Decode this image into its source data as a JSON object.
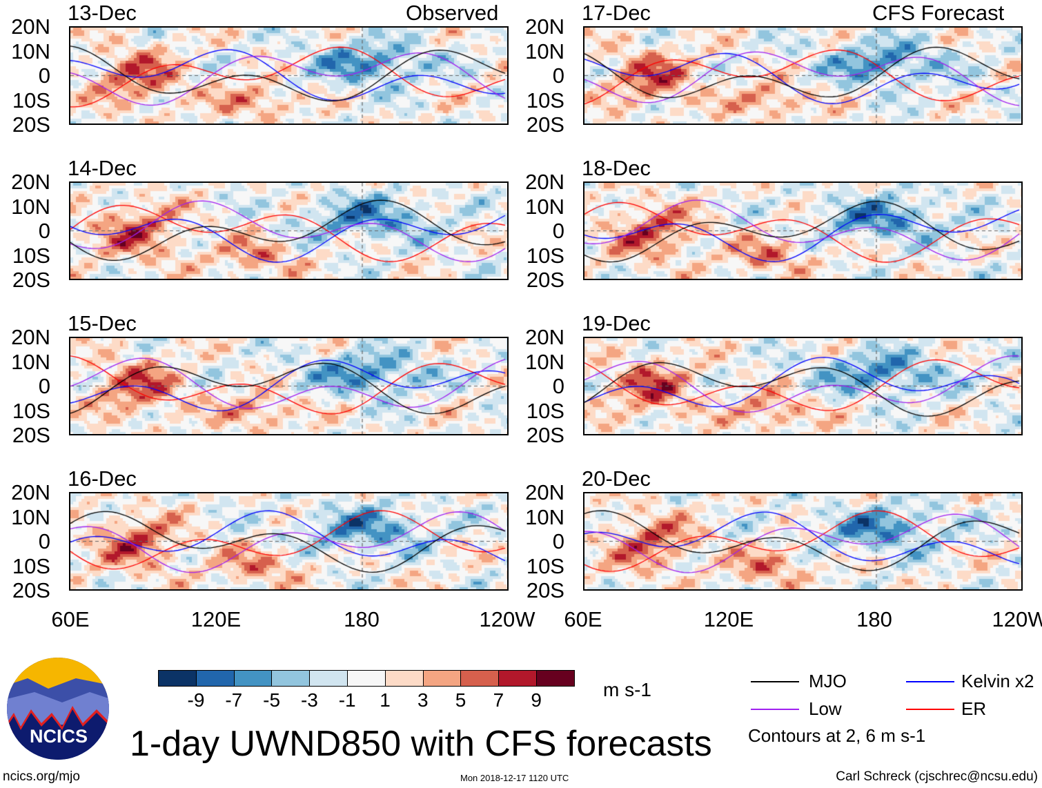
{
  "chart_data": {
    "type": "heatmap",
    "title": "1-day UWND850 with CFS forecasts",
    "units": "m s-1",
    "observed_label": "Observed",
    "forecast_label": "CFS Forecast",
    "panels": [
      {
        "date": "13-Dec",
        "kind": "observed"
      },
      {
        "date": "14-Dec",
        "kind": "observed"
      },
      {
        "date": "15-Dec",
        "kind": "observed"
      },
      {
        "date": "16-Dec",
        "kind": "observed"
      },
      {
        "date": "17-Dec",
        "kind": "forecast"
      },
      {
        "date": "18-Dec",
        "kind": "forecast"
      },
      {
        "date": "19-Dec",
        "kind": "forecast"
      },
      {
        "date": "20-Dec",
        "kind": "forecast"
      }
    ],
    "lat_ticks": [
      "20N",
      "10N",
      "0",
      "10S",
      "20S"
    ],
    "lon_ticks": [
      "60E",
      "120E",
      "180",
      "120W"
    ],
    "colorbar": {
      "labels": [
        "-9",
        "-7",
        "-5",
        "-3",
        "-1",
        "1",
        "3",
        "5",
        "7",
        "9"
      ],
      "colors": [
        "#0b3366",
        "#2166ac",
        "#4393c3",
        "#92c5de",
        "#d1e5f0",
        "#f7f7f7",
        "#fddbc7",
        "#f4a582",
        "#d6604d",
        "#b2182b",
        "#67001f"
      ]
    },
    "legend": [
      {
        "label": "MJO",
        "color": "#000000"
      },
      {
        "label": "Kelvin x2",
        "color": "#0000ff"
      },
      {
        "label": "Low",
        "color": "#a020f0"
      },
      {
        "label": "ER",
        "color": "#ff0000"
      }
    ],
    "contour_note": "Contours at 2, 6 m s-1"
  },
  "footer": {
    "logo_text": "NCICS",
    "url": "ncics.org/mjo",
    "timestamp": "Mon 2018-12-17 1120 UTC",
    "credit": "Carl Schreck (cjschrec@ncsu.edu)"
  }
}
